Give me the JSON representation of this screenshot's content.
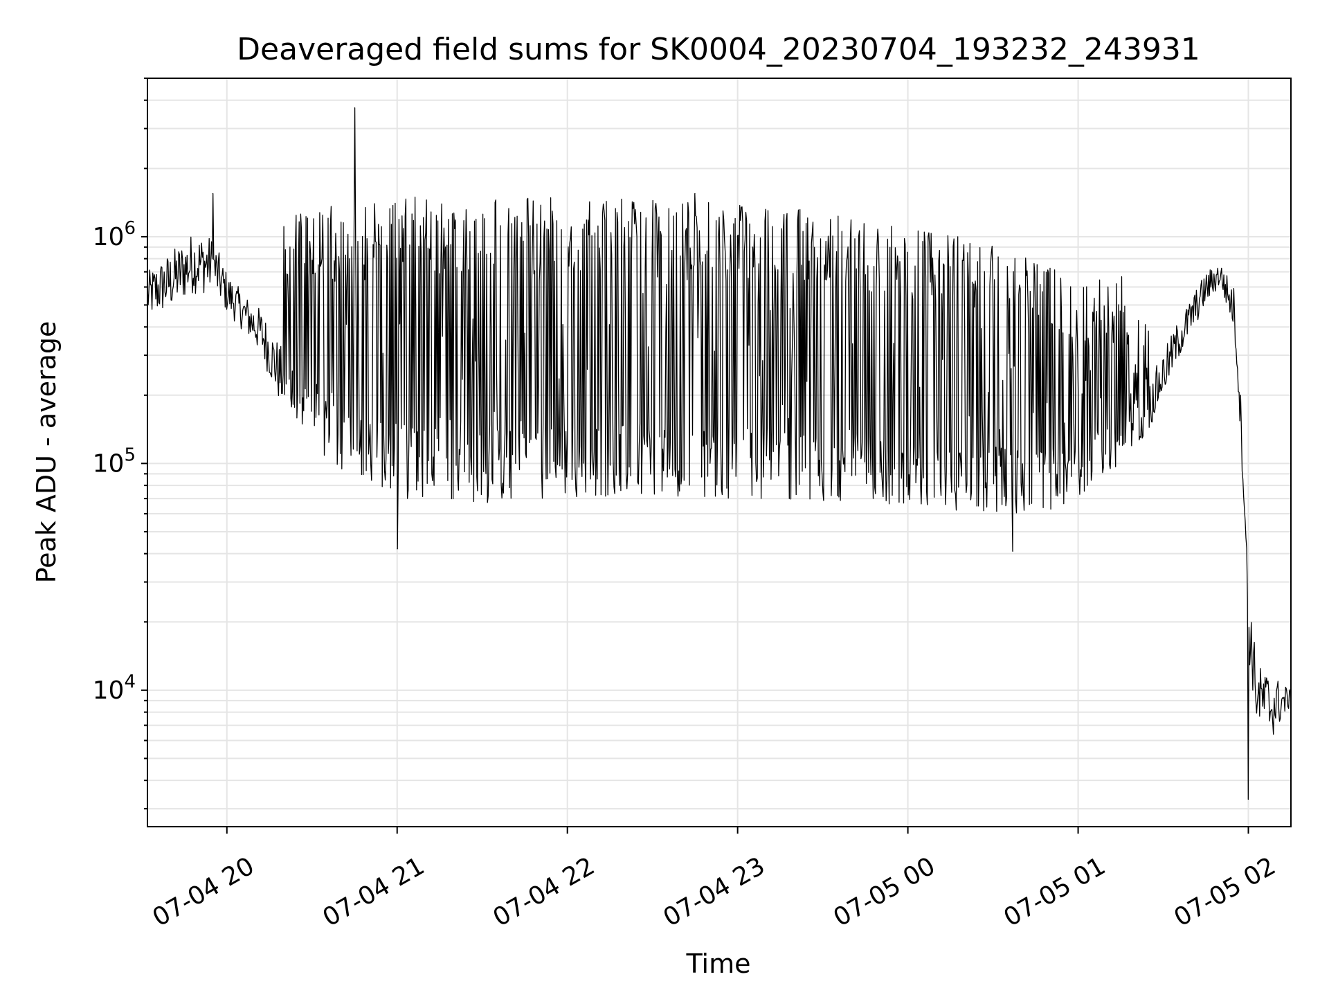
{
  "chart_data": {
    "type": "line",
    "title": "Deaveraged field sums for SK0004_20230704_193232_243931",
    "xlabel": "Time",
    "ylabel": "Peak ADU - average",
    "xlim": [
      "2023-07-04T19:32:00",
      "2023-07-05T02:15:00"
    ],
    "yscale": "log",
    "ylim": [
      2500,
      5000000
    ],
    "grid": true,
    "line_color": "#000000",
    "grid_color": "#e5e5e5",
    "x_ticks": [
      {
        "value": "2023-07-04T20:00:00",
        "label": "07-04 20"
      },
      {
        "value": "2023-07-04T21:00:00",
        "label": "07-04 21"
      },
      {
        "value": "2023-07-04T22:00:00",
        "label": "07-04 22"
      },
      {
        "value": "2023-07-04T23:00:00",
        "label": "07-04 23"
      },
      {
        "value": "2023-07-05T00:00:00",
        "label": "07-05 00"
      },
      {
        "value": "2023-07-05T01:00:00",
        "label": "07-05 01"
      },
      {
        "value": "2023-07-05T02:00:00",
        "label": "07-05 02"
      }
    ],
    "y_ticks": [
      {
        "value": 10000,
        "base": "10",
        "exp": "4"
      },
      {
        "value": 100000,
        "base": "10",
        "exp": "5"
      },
      {
        "value": 1000000,
        "base": "10",
        "exp": "6"
      }
    ],
    "series": [
      {
        "name": "",
        "envelope": [
          {
            "x": "2023-07-04T19:32:00",
            "low": 430000,
            "high": 700000
          },
          {
            "x": "2023-07-04T19:40:00",
            "low": 470000,
            "high": 860000
          },
          {
            "x": "2023-07-04T19:48:00",
            "low": 560000,
            "high": 1050000
          },
          {
            "x": "2023-07-04T19:55:00",
            "low": 560000,
            "high": 1000000
          },
          {
            "x": "2023-07-04T20:00:00",
            "low": 460000,
            "high": 700000
          },
          {
            "x": "2023-07-04T20:06:00",
            "low": 380000,
            "high": 560000
          },
          {
            "x": "2023-07-04T20:12:00",
            "low": 300000,
            "high": 480000
          },
          {
            "x": "2023-07-04T20:18:00",
            "low": 190000,
            "high": 350000
          },
          {
            "x": "2023-07-04T20:25:00",
            "low": 130000,
            "high": 240000
          },
          {
            "x": "2023-07-04T20:35:00",
            "low": 100000,
            "high": 190000
          },
          {
            "x": "2023-07-04T20:45:00",
            "low": 85000,
            "high": 160000
          },
          {
            "x": "2023-07-04T21:00:00",
            "low": 70000,
            "high": 150000
          },
          {
            "x": "2023-07-04T21:30:00",
            "low": 65000,
            "high": 140000
          },
          {
            "x": "2023-07-04T22:00:00",
            "low": 70000,
            "high": 150000
          },
          {
            "x": "2023-07-04T22:30:00",
            "low": 72000,
            "high": 150000
          },
          {
            "x": "2023-07-04T23:00:00",
            "low": 70000,
            "high": 150000
          },
          {
            "x": "2023-07-04T23:30:00",
            "low": 68000,
            "high": 140000
          },
          {
            "x": "2023-07-05T00:00:00",
            "low": 65000,
            "high": 130000
          },
          {
            "x": "2023-07-05T00:30:00",
            "low": 60000,
            "high": 120000
          },
          {
            "x": "2023-07-05T00:50:00",
            "low": 58000,
            "high": 115000
          },
          {
            "x": "2023-07-05T01:05:00",
            "low": 80000,
            "high": 140000
          },
          {
            "x": "2023-07-05T01:15:00",
            "low": 100000,
            "high": 160000
          },
          {
            "x": "2023-07-05T01:25:00",
            "low": 140000,
            "high": 230000
          },
          {
            "x": "2023-07-05T01:35:00",
            "low": 280000,
            "high": 420000
          },
          {
            "x": "2023-07-05T01:45:00",
            "low": 500000,
            "high": 700000
          },
          {
            "x": "2023-07-05T01:50:00",
            "low": 600000,
            "high": 780000
          },
          {
            "x": "2023-07-05T01:55:00",
            "low": 380000,
            "high": 600000
          },
          {
            "x": "2023-07-05T01:57:00",
            "low": 150000,
            "high": 250000
          },
          {
            "x": "2023-07-05T01:59:00",
            "low": 45000,
            "high": 60000
          },
          {
            "x": "2023-07-05T02:00:00",
            "low": 14000,
            "high": 30000
          },
          {
            "x": "2023-07-05T02:03:00",
            "low": 7000,
            "high": 13000
          },
          {
            "x": "2023-07-05T02:08:00",
            "low": 6000,
            "high": 12000
          },
          {
            "x": "2023-07-05T02:15:00",
            "low": 8500,
            "high": 10000
          }
        ],
        "burst_region": [
          {
            "x": "2023-07-04T20:20:00",
            "peak": 1300000
          },
          {
            "x": "2023-07-04T20:45:00",
            "peak": 1400000
          },
          {
            "x": "2023-07-04T21:00:00",
            "peak": 1500000
          },
          {
            "x": "2023-07-04T21:30:00",
            "peak": 1550000
          },
          {
            "x": "2023-07-04T22:00:00",
            "peak": 1500000
          },
          {
            "x": "2023-07-04T22:30:00",
            "peak": 1450000
          },
          {
            "x": "2023-07-04T23:00:00",
            "peak": 1400000
          },
          {
            "x": "2023-07-04T23:30:00",
            "peak": 1300000
          },
          {
            "x": "2023-07-05T00:00:00",
            "peak": 1100000
          },
          {
            "x": "2023-07-05T00:30:00",
            "peak": 950000
          },
          {
            "x": "2023-07-05T00:55:00",
            "peak": 700000
          },
          {
            "x": "2023-07-05T01:15:00",
            "peak": 700000
          },
          {
            "x": "2023-07-05T01:25:00",
            "peak": 400000
          }
        ],
        "notable_points": [
          {
            "x": "2023-07-04T19:55:00",
            "y": 1550000
          },
          {
            "x": "2023-07-04T20:45:00",
            "y": 3700000
          },
          {
            "x": "2023-07-04T21:00:00",
            "y": 42000
          },
          {
            "x": "2023-07-04T22:45:00",
            "y": 1550000
          },
          {
            "x": "2023-07-05T00:37:00",
            "y": 41000
          },
          {
            "x": "2023-07-05T02:00:00",
            "y": 3300
          }
        ]
      }
    ]
  }
}
